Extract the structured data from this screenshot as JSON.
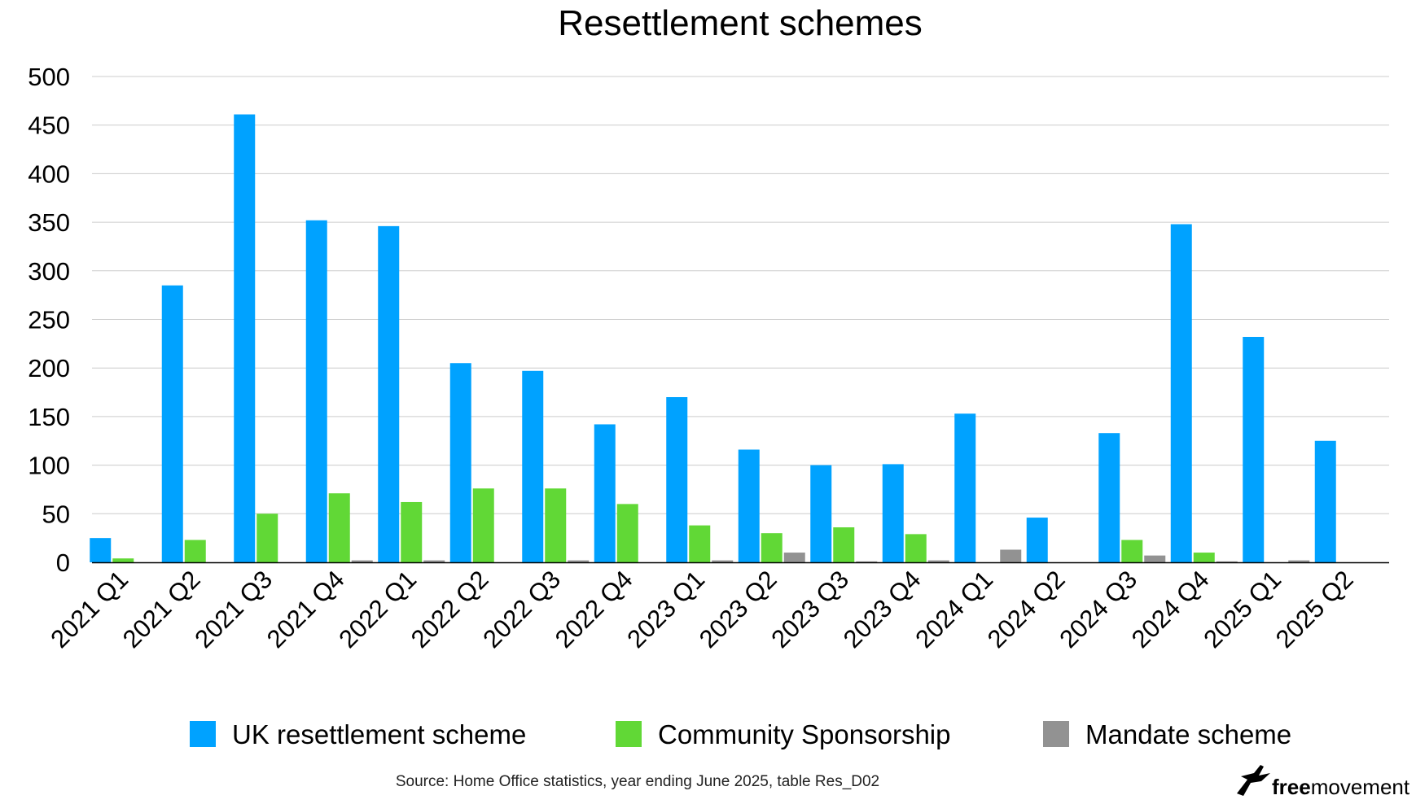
{
  "chart_data": {
    "type": "bar",
    "title": "Resettlement schemes",
    "categories": [
      "2021 Q1",
      "2021 Q2",
      "2021 Q3",
      "2021 Q4",
      "2022 Q1",
      "2022 Q2",
      "2022 Q3",
      "2022 Q4",
      "2023 Q1",
      "2023 Q2",
      "2023 Q3",
      "2023 Q4",
      "2024 Q1",
      "2024 Q2",
      "2024 Q3",
      "2024 Q4",
      "2025 Q1",
      "2025 Q2"
    ],
    "series": [
      {
        "name": "UK resettlement scheme",
        "color": "#00a2ff",
        "values": [
          25,
          285,
          461,
          352,
          346,
          205,
          197,
          142,
          170,
          116,
          100,
          101,
          153,
          46,
          133,
          348,
          232,
          125
        ]
      },
      {
        "name": "Community Sponsorship",
        "color": "#61d836",
        "values": [
          4,
          23,
          50,
          71,
          62,
          76,
          76,
          60,
          38,
          30,
          36,
          29,
          0,
          0,
          23,
          10,
          0,
          0
        ]
      },
      {
        "name": "Mandate scheme",
        "color": "#929292",
        "values": [
          0,
          0,
          0,
          2,
          2,
          0,
          2,
          0,
          2,
          10,
          1,
          2,
          13,
          0,
          7,
          1,
          2,
          0
        ]
      }
    ],
    "ylim": [
      0,
      500
    ],
    "yticks": [
      0,
      50,
      100,
      150,
      200,
      250,
      300,
      350,
      400,
      450,
      500
    ],
    "grid": true,
    "legend_position": "bottom",
    "xlabel": "",
    "ylabel": ""
  },
  "source": "Source: Home Office statistics, year ending June 2025, table Res_D02",
  "logo": {
    "bold": "free",
    "regular": "movement"
  }
}
